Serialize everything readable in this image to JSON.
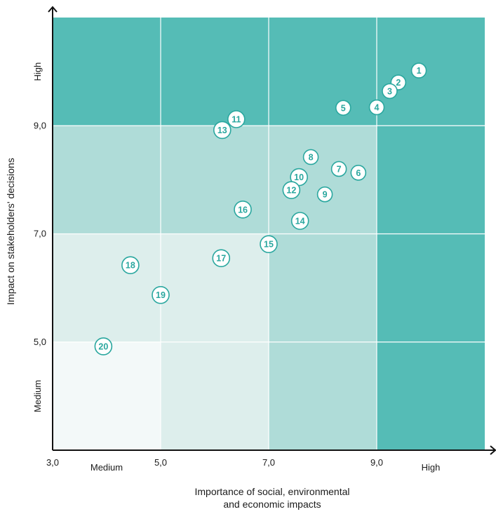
{
  "chart_data": {
    "type": "scatter",
    "title": "",
    "xlabel_lines": [
      "Importance of social, environmental",
      "and economic impacts"
    ],
    "ylabel": "Impact on stakeholders' decisions",
    "xlim": [
      3.0,
      11.0
    ],
    "ylim": [
      3.0,
      11.0
    ],
    "grid": true,
    "x_ticks": [
      {
        "value": 3.0,
        "label": "3,0"
      },
      {
        "value": 5.0,
        "label": "5,0"
      },
      {
        "value": 7.0,
        "label": "7,0"
      },
      {
        "value": 9.0,
        "label": "9,0"
      }
    ],
    "y_ticks": [
      {
        "value": 5.0,
        "label": "5,0"
      },
      {
        "value": 7.0,
        "label": "7,0"
      },
      {
        "value": 9.0,
        "label": "9,0"
      }
    ],
    "x_band_labels": [
      {
        "value": 4.0,
        "label": "Medium"
      },
      {
        "value": 10.0,
        "label": "High"
      }
    ],
    "y_band_labels": [
      {
        "value": 4.0,
        "label": "Medium"
      },
      {
        "value": 10.0,
        "label": "High"
      }
    ],
    "zone_colors": {
      "high": "#55bcb6",
      "mid_high": "#afdcd8",
      "mid": "#ddeeec",
      "low": "#f3f9f9"
    },
    "points": [
      {
        "label": "1",
        "x": 9.78,
        "y": 10.02
      },
      {
        "label": "2",
        "x": 9.4,
        "y": 9.8
      },
      {
        "label": "3",
        "x": 9.24,
        "y": 9.64
      },
      {
        "label": "4",
        "x": 9.0,
        "y": 9.34
      },
      {
        "label": "5",
        "x": 8.38,
        "y": 9.33
      },
      {
        "label": "6",
        "x": 8.66,
        "y": 8.13
      },
      {
        "label": "7",
        "x": 8.3,
        "y": 8.2
      },
      {
        "label": "8",
        "x": 7.78,
        "y": 8.42
      },
      {
        "label": "9",
        "x": 8.04,
        "y": 7.73
      },
      {
        "label": "10",
        "x": 7.56,
        "y": 8.05
      },
      {
        "label": "11",
        "x": 6.4,
        "y": 9.12
      },
      {
        "label": "12",
        "x": 7.42,
        "y": 7.81
      },
      {
        "label": "13",
        "x": 6.14,
        "y": 8.92
      },
      {
        "label": "14",
        "x": 7.58,
        "y": 7.24
      },
      {
        "label": "15",
        "x": 7.0,
        "y": 6.81
      },
      {
        "label": "16",
        "x": 6.52,
        "y": 7.45
      },
      {
        "label": "17",
        "x": 6.12,
        "y": 6.55
      },
      {
        "label": "18",
        "x": 4.44,
        "y": 6.42
      },
      {
        "label": "19",
        "x": 5.0,
        "y": 5.87
      },
      {
        "label": "20",
        "x": 3.94,
        "y": 4.92
      }
    ]
  }
}
